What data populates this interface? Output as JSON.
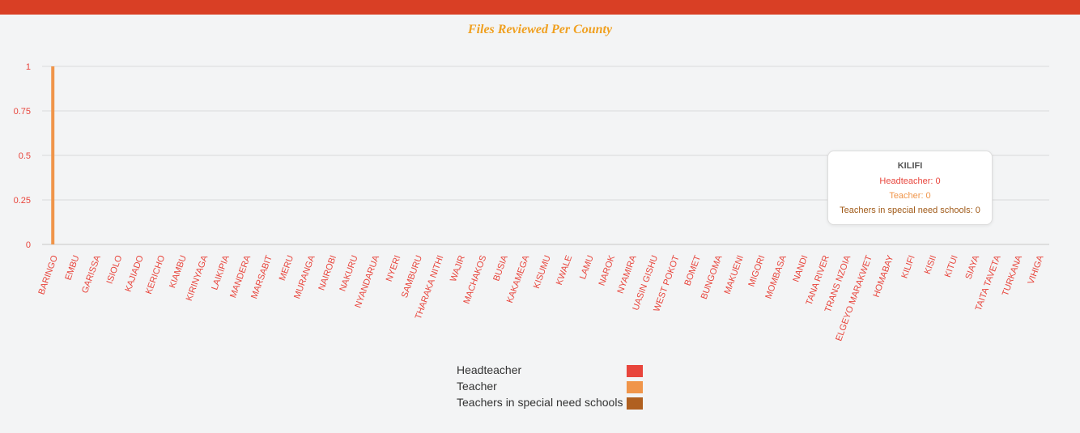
{
  "chart_data": {
    "type": "bar",
    "title": "Files Reviewed Per County",
    "categories": [
      "BARINGO",
      "EMBU",
      "GARISSA",
      "ISIOLO",
      "KAJIADO",
      "KERICHO",
      "KIAMBU",
      "KIRINYAGA",
      "LAIKIPIA",
      "MANDERA",
      "MARSABIT",
      "MERU",
      "MURANGA",
      "NAIROBI",
      "NAKURU",
      "NYANDARUA",
      "NYERI",
      "SAMBURU",
      "THARAKA NITHI",
      "WAJIR",
      "MACHAKOS",
      "BUSIA",
      "KAKAMEGA",
      "KISUMU",
      "KWALE",
      "LAMU",
      "NAROK",
      "NYAMIRA",
      "UASIN GISHU",
      "WEST POKOT",
      "BOMET",
      "BUNGOMA",
      "MAKUENI",
      "MIGORI",
      "MOMBASA",
      "NANDI",
      "TANA RIVER",
      "TRANS NZOIA",
      "ELGEYO MARAKWET",
      "HOMABAY",
      "KILIFI",
      "KISII",
      "KITUI",
      "SIAYA",
      "TAITA TAVETA",
      "TURKANA",
      "VIHIGA"
    ],
    "series": [
      {
        "name": "Headteacher",
        "color": "#e8453c",
        "values": [
          0,
          0,
          0,
          0,
          0,
          0,
          0,
          0,
          0,
          0,
          0,
          0,
          0,
          0,
          0,
          0,
          0,
          0,
          0,
          0,
          0,
          0,
          0,
          0,
          0,
          0,
          0,
          0,
          0,
          0,
          0,
          0,
          0,
          0,
          0,
          0,
          0,
          0,
          0,
          0,
          0,
          0,
          0,
          0,
          0,
          0,
          0
        ]
      },
      {
        "name": "Teacher",
        "color": "#f0954a",
        "values": [
          1,
          0,
          0,
          0,
          0,
          0,
          0,
          0,
          0,
          0,
          0,
          0,
          0,
          0,
          0,
          0,
          0,
          0,
          0,
          0,
          0,
          0,
          0,
          0,
          0,
          0,
          0,
          0,
          0,
          0,
          0,
          0,
          0,
          0,
          0,
          0,
          0,
          0,
          0,
          0,
          0,
          0,
          0,
          0,
          0,
          0,
          0
        ]
      },
      {
        "name": "Teachers in special need schools",
        "color": "#b06020",
        "values": [
          0,
          0,
          0,
          0,
          0,
          0,
          0,
          0,
          0,
          0,
          0,
          0,
          0,
          0,
          0,
          0,
          0,
          0,
          0,
          0,
          0,
          0,
          0,
          0,
          0,
          0,
          0,
          0,
          0,
          0,
          0,
          0,
          0,
          0,
          0,
          0,
          0,
          0,
          0,
          0,
          0,
          0,
          0,
          0,
          0,
          0,
          0
        ]
      }
    ],
    "yticks": [
      "0",
      "0.25",
      "0.5",
      "0.75",
      "1"
    ],
    "ylim": [
      0,
      1
    ],
    "grid": true,
    "legend_position": "bottom-center"
  },
  "tooltip": {
    "title": "KILIFI",
    "lines": [
      {
        "text": "Headteacher: 0",
        "color": "#e8453c"
      },
      {
        "text": "Teacher: 0",
        "color": "#f0954a"
      },
      {
        "text": "Teachers in special need schools: 0",
        "color": "#a05a18"
      }
    ]
  },
  "colors": {
    "topbar": "#d93f25",
    "title": "#f0a020",
    "axis_label": "#e8453c"
  }
}
